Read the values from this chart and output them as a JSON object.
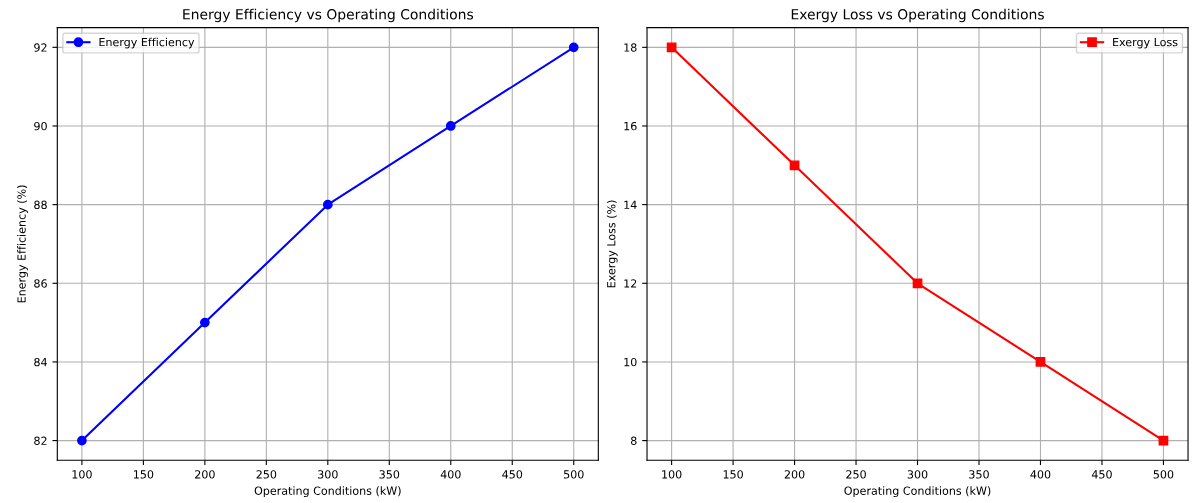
{
  "chart_data": [
    {
      "type": "line",
      "title": "Energy Efficiency vs Operating Conditions",
      "xlabel": "Operating Conditions (kW)",
      "ylabel": "Energy Efficiency (%)",
      "x": [
        100,
        200,
        300,
        400,
        500
      ],
      "series": [
        {
          "name": "Energy Efficiency",
          "color": "#0000ff",
          "values": [
            82,
            85,
            88,
            90,
            92
          ]
        }
      ],
      "xlim": [
        80,
        520
      ],
      "xticks": [
        100,
        150,
        200,
        250,
        300,
        350,
        400,
        450,
        500
      ],
      "ylim": [
        81.5,
        92.5
      ],
      "yticks": [
        82,
        84,
        86,
        88,
        90,
        92
      ],
      "grid": true,
      "legend": "top left",
      "marker": "circle",
      "line_style": "solid"
    },
    {
      "type": "line",
      "title": "Exergy Loss vs Operating Conditions",
      "xlabel": "Operating Conditions (kW)",
      "ylabel": "Exergy Loss (%)",
      "x": [
        100,
        200,
        300,
        400,
        500
      ],
      "series": [
        {
          "name": "Exergy Loss",
          "color": "#ff0000",
          "values": [
            18,
            15,
            12,
            10,
            8
          ]
        }
      ],
      "xlim": [
        80,
        520
      ],
      "xticks": [
        100,
        150,
        200,
        250,
        300,
        350,
        400,
        450,
        500
      ],
      "ylim": [
        7.5,
        18.5
      ],
      "yticks": [
        8,
        10,
        12,
        14,
        16,
        18
      ],
      "grid": true,
      "legend": "top right",
      "marker": "square",
      "line_style": "solid"
    }
  ]
}
